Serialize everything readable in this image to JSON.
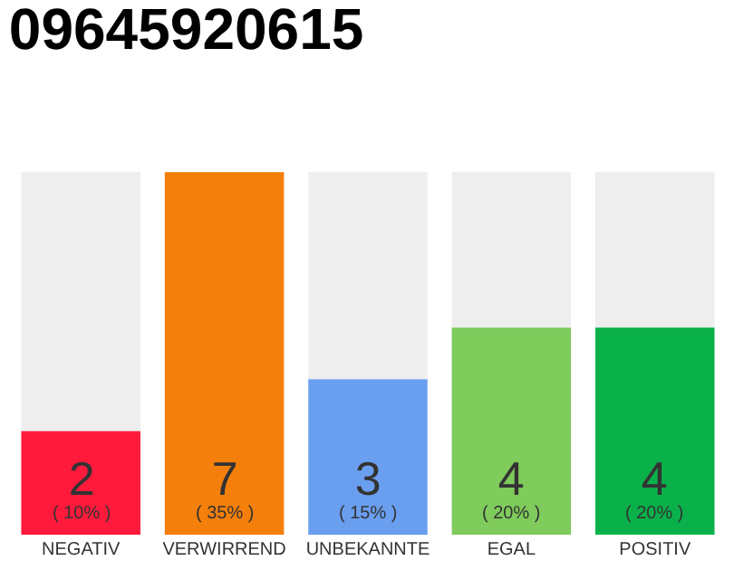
{
  "chart_data": {
    "type": "bar",
    "title": "09645920615",
    "categories": [
      "NEGATIV",
      "VERWIRREND",
      "UNBEKANNTE",
      "EGAL",
      "POSITIV"
    ],
    "values": [
      2,
      7,
      3,
      4,
      4
    ],
    "colors": [
      "#ff1a3c",
      "#f47f0b",
      "#6a9ff0",
      "#7fcb5c",
      "#0ab14a"
    ],
    "value_labels": [
      "2\n( 10% )",
      "7\n( 35% )",
      "3\n( 15% )",
      "4\n( 20% )",
      "4\n( 20% )"
    ]
  }
}
